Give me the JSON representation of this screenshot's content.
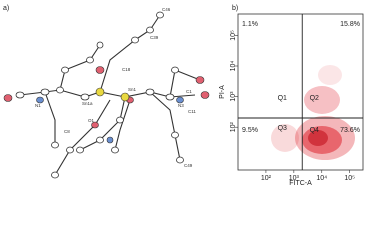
{
  "panel_a": {
    "label": "a)",
    "atoms": [
      "C46",
      "C39",
      "C18",
      "Sn1a",
      "Sn1",
      "N1",
      "N3",
      "O1",
      "C1",
      "C11",
      "C8",
      "C49"
    ]
  },
  "chart_data": {
    "type": "scatter",
    "panel_label": "b)",
    "x_label": "FITC-A",
    "y_label": "PI-A",
    "log_scale": true,
    "xlim": [
      10,
      300000
    ],
    "ylim": [
      4,
      500000
    ],
    "xticks": [
      {
        "value": 100,
        "label": "10²"
      },
      {
        "value": 1000,
        "label": "10³"
      },
      {
        "value": 10000,
        "label": "10⁴"
      },
      {
        "value": 100000,
        "label": "10⁵"
      }
    ],
    "yticks": [
      {
        "value": 100,
        "label": "10²"
      },
      {
        "value": 1000,
        "label": "10³"
      },
      {
        "value": 10000,
        "label": "10⁴"
      },
      {
        "value": 100000,
        "label": "10⁵"
      }
    ],
    "gate": [
      2000,
      200
    ],
    "quadrants": [
      "Q1",
      "Q2",
      "Q3",
      "Q4"
    ],
    "values": [
      1.1,
      15.8,
      9.5,
      73.6
    ],
    "value_labels": [
      "1.1%",
      "15.8%",
      "9.5%",
      "73.6%"
    ],
    "color": "#e0303a"
  }
}
